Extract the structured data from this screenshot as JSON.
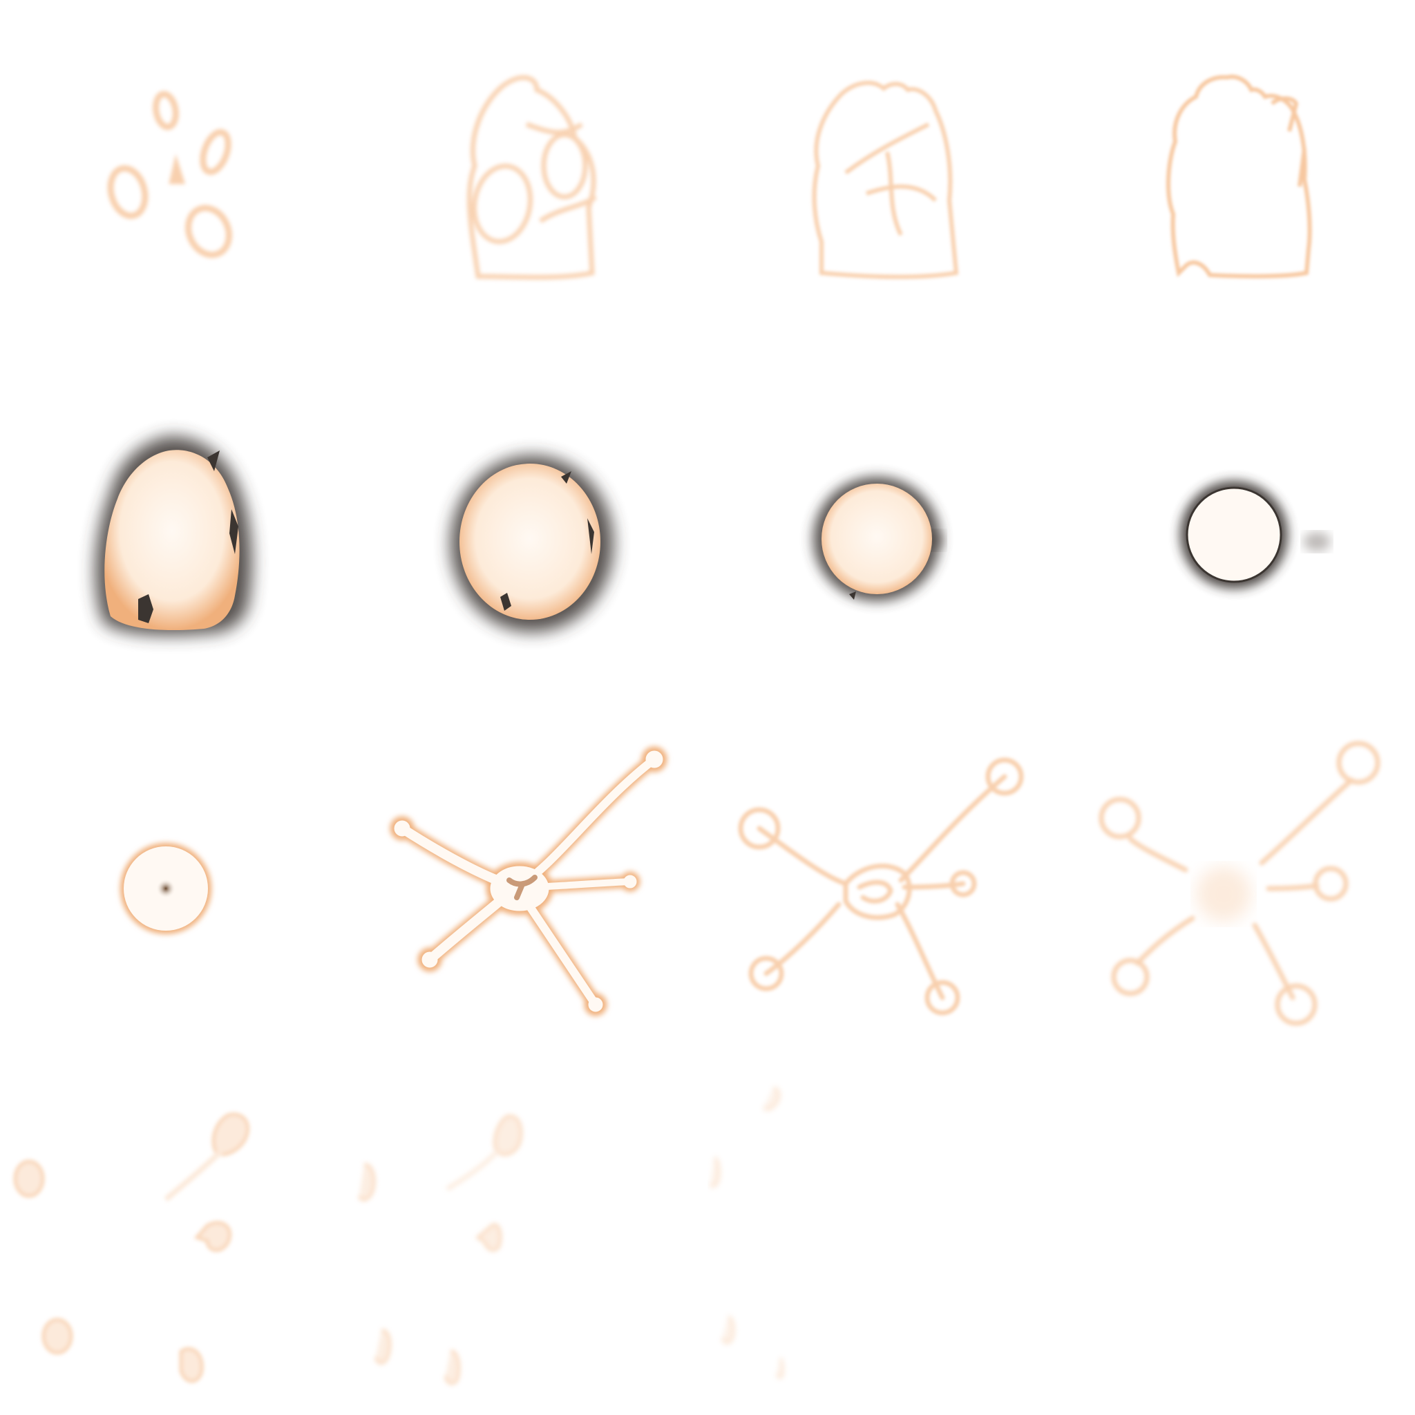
{
  "sprite_sheet": {
    "grid": {
      "columns": 4,
      "rows": 4
    },
    "colors": {
      "glow": "#f7c8a0",
      "glow_soft": "#fbe3cf",
      "core": "#fff9f3",
      "rim": "#f0b07c",
      "shadow": "#3b3531",
      "background": "#ffffff"
    },
    "frames": [
      {
        "index": 1,
        "phase": "gathering-rings"
      },
      {
        "index": 2,
        "phase": "silhouette-forming"
      },
      {
        "index": 3,
        "phase": "silhouette-forming"
      },
      {
        "index": 4,
        "phase": "silhouette-outline"
      },
      {
        "index": 5,
        "phase": "burning-orb"
      },
      {
        "index": 6,
        "phase": "burning-orb"
      },
      {
        "index": 7,
        "phase": "burning-orb"
      },
      {
        "index": 8,
        "phase": "burning-orb"
      },
      {
        "index": 9,
        "phase": "bright-core"
      },
      {
        "index": 10,
        "phase": "star-burst"
      },
      {
        "index": 11,
        "phase": "star-burst-fading"
      },
      {
        "index": 12,
        "phase": "star-burst-fading"
      },
      {
        "index": 13,
        "phase": "dissipating-bubbles"
      },
      {
        "index": 14,
        "phase": "dissipating-bubbles"
      },
      {
        "index": 15,
        "phase": "dissipating-bubbles"
      },
      {
        "index": 16,
        "phase": "empty"
      }
    ]
  }
}
